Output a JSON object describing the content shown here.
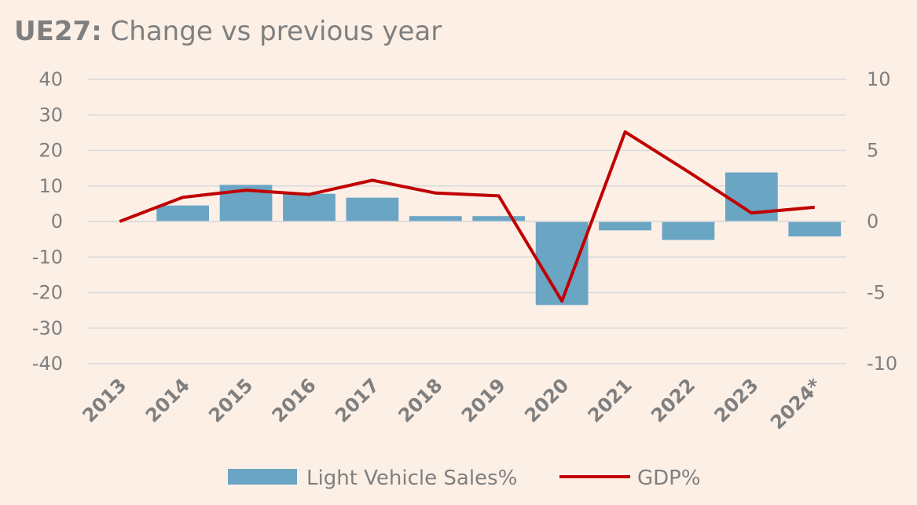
{
  "chart_data": {
    "type": "bar",
    "title_bold": "UE27:",
    "title_rest": " Change vs previous year",
    "categories": [
      "2013",
      "2014",
      "2015",
      "2016",
      "2017",
      "2018",
      "2019",
      "2020",
      "2021",
      "2022",
      "2023",
      "2024*"
    ],
    "series": [
      {
        "name": "Light Vehicle Sales%",
        "type": "bar",
        "axis": "left",
        "color": "#6aa5c4",
        "values": [
          0,
          4.5,
          10.3,
          7.8,
          6.7,
          1.5,
          1.5,
          -23.5,
          -2.5,
          -5.2,
          13.8,
          -4.2
        ]
      },
      {
        "name": "GDP%",
        "type": "line",
        "axis": "right",
        "color": "#c00000",
        "values": [
          0,
          1.7,
          2.2,
          1.9,
          2.9,
          2.0,
          1.8,
          -5.6,
          6.3,
          3.5,
          0.6,
          1.0
        ]
      }
    ],
    "y_left": {
      "min": -40,
      "max": 40,
      "ticks": [
        "40",
        "30",
        "20",
        "10",
        "0",
        "-10",
        "-20",
        "-30",
        "-40"
      ]
    },
    "y_right": {
      "min": -10,
      "max": 10,
      "ticks": [
        "10",
        "5",
        "0",
        "-5",
        "-10"
      ]
    },
    "grid": true,
    "legend_position": "bottom"
  }
}
